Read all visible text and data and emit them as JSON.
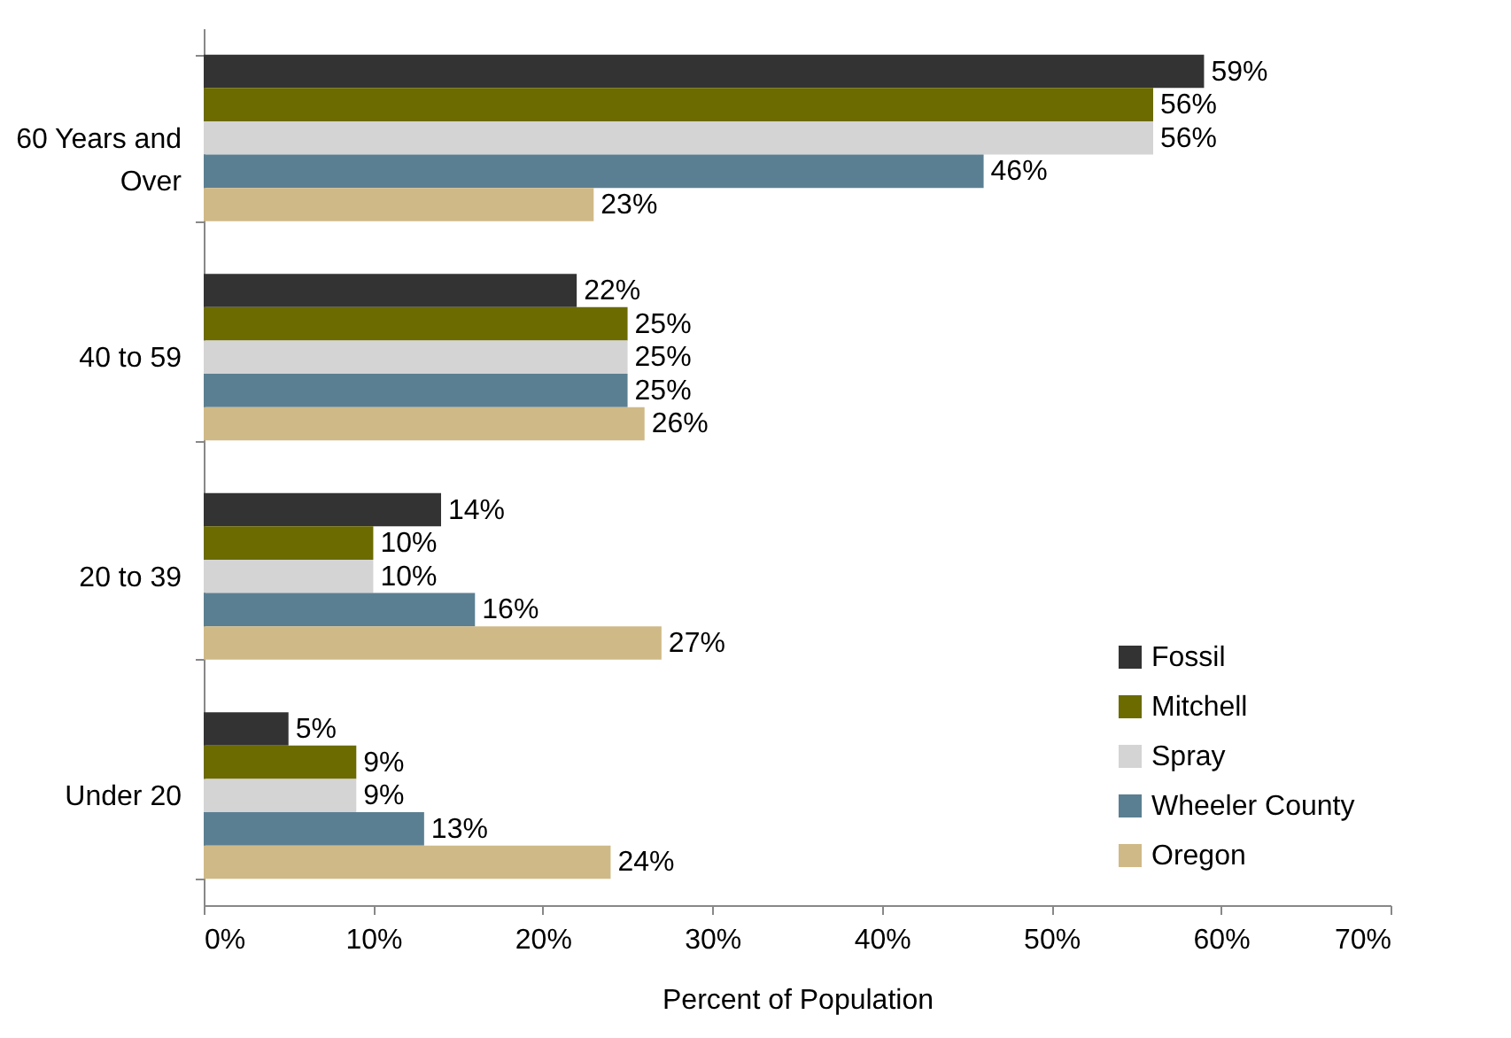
{
  "chart_data": {
    "type": "bar",
    "orientation": "horizontal",
    "xlabel": "Percent of Population",
    "categories": [
      "60 Years and Over",
      "40 to 59",
      "20 to 39",
      "Under 20"
    ],
    "series": [
      {
        "name": "Fossil",
        "color": "#333333",
        "values": [
          59,
          22,
          14,
          5
        ],
        "value_labels": [
          "59%",
          "22%",
          "14%",
          "5%"
        ]
      },
      {
        "name": "Mitchell",
        "color": "#6b6b00",
        "values": [
          56,
          25,
          10,
          9
        ],
        "value_labels": [
          "56%",
          "25%",
          "10%",
          "9%"
        ]
      },
      {
        "name": "Spray",
        "color": "#d4d4d4",
        "values": [
          56,
          25,
          10,
          9
        ],
        "value_labels": [
          "56%",
          "25%",
          "10%",
          "9%"
        ]
      },
      {
        "name": "Wheeler County",
        "color": "#5b7f92",
        "values": [
          46,
          25,
          16,
          13
        ],
        "value_labels": [
          "46%",
          "25%",
          "16%",
          "13%"
        ]
      },
      {
        "name": "Oregon",
        "color": "#cfb986",
        "values": [
          23,
          26,
          27,
          24
        ],
        "value_labels": [
          "23%",
          "26%",
          "27%",
          "24%"
        ]
      }
    ],
    "xlim": [
      0,
      70
    ],
    "xticks": [
      {
        "value": 0,
        "label": "0%"
      },
      {
        "value": 10,
        "label": "10%"
      },
      {
        "value": 20,
        "label": "20%"
      },
      {
        "value": 30,
        "label": "30%"
      },
      {
        "value": 40,
        "label": "40%"
      },
      {
        "value": 50,
        "label": "50%"
      },
      {
        "value": 60,
        "label": "60%"
      },
      {
        "value": 70,
        "label": "70%"
      }
    ],
    "grid": false,
    "legend": "bottom right"
  }
}
